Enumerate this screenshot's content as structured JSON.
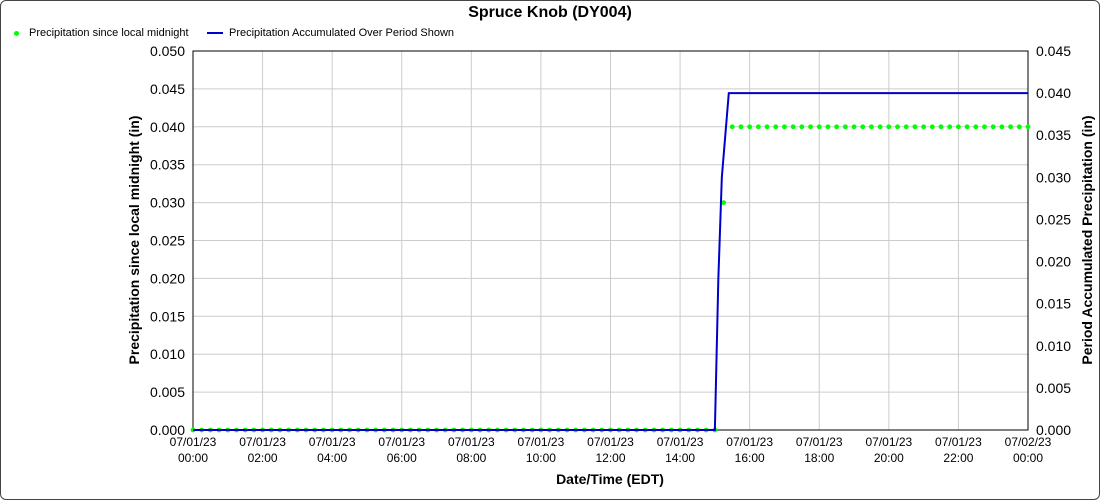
{
  "chart_data": {
    "type": "line",
    "title": "Spruce Knob (DY004)",
    "xlabel": "Date/Time (EDT)",
    "ylabel_left": "Precipitation since local midnight (in)",
    "ylabel_right": "Period Accumulated Precipitation (in)",
    "y_left_range": [
      0,
      0.05
    ],
    "y_right_range": [
      0,
      0.045
    ],
    "y_left_ticks": [
      "0.000",
      "0.005",
      "0.010",
      "0.015",
      "0.020",
      "0.025",
      "0.030",
      "0.035",
      "0.040",
      "0.045",
      "0.050"
    ],
    "y_right_ticks": [
      "0.000",
      "0.005",
      "0.010",
      "0.015",
      "0.020",
      "0.025",
      "0.030",
      "0.035",
      "0.040",
      "0.045"
    ],
    "x_range_hours": [
      0,
      24
    ],
    "x_ticks": [
      {
        "date": "07/01/23",
        "time": "00:00"
      },
      {
        "date": "07/01/23",
        "time": "02:00"
      },
      {
        "date": "07/01/23",
        "time": "04:00"
      },
      {
        "date": "07/01/23",
        "time": "06:00"
      },
      {
        "date": "07/01/23",
        "time": "08:00"
      },
      {
        "date": "07/01/23",
        "time": "10:00"
      },
      {
        "date": "07/01/23",
        "time": "12:00"
      },
      {
        "date": "07/01/23",
        "time": "14:00"
      },
      {
        "date": "07/01/23",
        "time": "16:00"
      },
      {
        "date": "07/01/23",
        "time": "18:00"
      },
      {
        "date": "07/01/23",
        "time": "20:00"
      },
      {
        "date": "07/01/23",
        "time": "22:00"
      },
      {
        "date": "07/02/23",
        "time": "00:00"
      }
    ],
    "grid": true,
    "legend_position": "top-left",
    "series": [
      {
        "name": "Precipitation since local midnight",
        "color": "#00ff00",
        "marker": "dot",
        "axis": "left",
        "interval_hours": 0.25,
        "segments": [
          {
            "from": 0,
            "to": 15.0,
            "value": 0.0
          },
          {
            "from": 15.25,
            "to": 15.25,
            "value": 0.03
          },
          {
            "from": 15.5,
            "to": 24.0,
            "value": 0.04
          }
        ]
      },
      {
        "name": "Precipitation Accumulated Over Period Shown",
        "color": "#0000cc",
        "marker": "none",
        "axis": "right",
        "points": [
          [
            0,
            0.0
          ],
          [
            15.0,
            0.0
          ],
          [
            15.1,
            0.018
          ],
          [
            15.2,
            0.03
          ],
          [
            15.4,
            0.04
          ],
          [
            24.0,
            0.04
          ]
        ]
      }
    ]
  }
}
